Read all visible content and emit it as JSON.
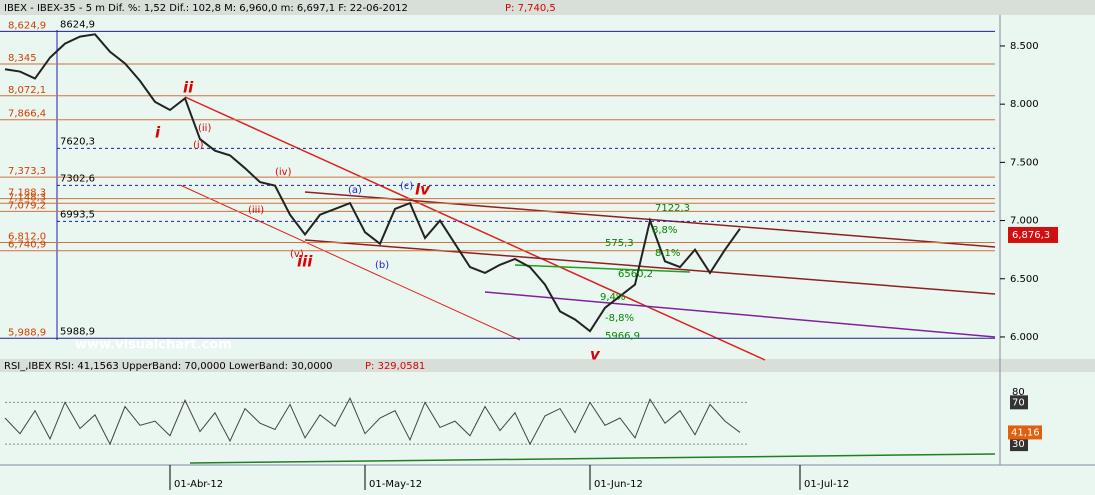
{
  "chart_data": [
    {
      "type": "line",
      "title": "IBEX - IBEX-35 - 5 m Dif. %: 1,52 Dif.: 102,8 M: 6,960,0 m: 6,697,1 F: 22-06-2012",
      "price_label": "P: 7,740,5",
      "watermark": "www.visualchart.com",
      "categories": [
        null,
        null,
        null,
        null,
        null,
        null,
        null,
        null,
        null,
        null,
        null,
        "01-Abr-12",
        null,
        null,
        null,
        null,
        null,
        null,
        null,
        null,
        null,
        null,
        null,
        null,
        "01-May-12",
        null,
        null,
        null,
        null,
        null,
        null,
        null,
        null,
        null,
        null,
        null,
        null,
        null,
        null,
        "01-Jun-12",
        null,
        null,
        null,
        null,
        null,
        null,
        null,
        null,
        null,
        null,
        null,
        null,
        null,
        "01-Jul-12",
        null,
        null,
        null,
        null,
        null,
        null,
        null,
        null,
        null,
        null,
        null,
        null,
        null
      ],
      "values": [
        8300,
        8280,
        8220,
        8400,
        8520,
        8580,
        8600,
        8450,
        8350,
        8200,
        8020,
        7950,
        8050,
        7700,
        7600,
        7560,
        7450,
        7330,
        7300,
        7050,
        6880,
        7050,
        7100,
        7150,
        6900,
        6800,
        7100,
        7150,
        6850,
        7000,
        6800,
        6600,
        6550,
        6620,
        6670,
        6600,
        6450,
        6220,
        6150,
        6050,
        6250,
        6350,
        6450,
        7000,
        6650,
        6600,
        6750,
        6550,
        6750,
        6930,
        null,
        null,
        null,
        null,
        null,
        null,
        null,
        null,
        null,
        null,
        null,
        null,
        null,
        null,
        null,
        null,
        null
      ],
      "color": "#222222",
      "ylim": [
        5845,
        8766
      ],
      "yticks": [
        {
          "value": 8500,
          "label": "8.500"
        },
        {
          "value": 8000,
          "label": "8.000"
        },
        {
          "value": 7500,
          "label": "7.500"
        },
        {
          "value": 7000,
          "label": "7.000"
        },
        {
          "value": 6500,
          "label": "6.500"
        },
        {
          "value": 6000,
          "label": "6.000"
        }
      ],
      "levels": [
        {
          "value": 8624.9,
          "label": "8,624,9"
        },
        {
          "value": 8345,
          "label": "8,345"
        },
        {
          "value": 8072.1,
          "label": "8,072,1"
        },
        {
          "value": 7866.4,
          "label": "7,866,4"
        },
        {
          "value": 7373.3,
          "label": "7,373,3"
        },
        {
          "value": 7188.3,
          "label": "7,188,3"
        },
        {
          "value": 7148.3,
          "label": "7,148,3"
        },
        {
          "value": 7079.2,
          "label": "7,079,2"
        },
        {
          "value": 6812,
          "label": "6,812,0"
        },
        {
          "value": 6740.9,
          "label": "6,740,9"
        },
        {
          "value": 5988.9,
          "label": "5,988,9"
        }
      ],
      "dashed_levels": [
        {
          "value": 7620.3,
          "label": "7620,3"
        },
        {
          "value": 7302.6,
          "label": "7302,6"
        },
        {
          "value": 6993.5,
          "label": "6993,5"
        }
      ],
      "marks": [
        {
          "value": 8624.9,
          "label": "8624,9"
        },
        {
          "value": 5988.9,
          "label": "5988,9"
        }
      ],
      "last": {
        "value": 6876.3,
        "label": "6,876,3"
      },
      "annotations": [
        "i",
        "ii",
        "(ii)",
        "(i)",
        "(iii)",
        "(iv)",
        "iii",
        "(v)",
        "(a)",
        "(b)",
        "(c)",
        "iv",
        "v",
        "7122,3",
        "575,3",
        "8,8%",
        "8,1%",
        "-8,8%",
        "5966,9",
        "9,4%",
        "6560,2"
      ]
    },
    {
      "type": "line",
      "title": "RSI_,IBEX RSI: 41,1563 UpperBand: 70,0000 LowerBand: 30,0000",
      "price_label": "P: 329,0581",
      "values": [
        55,
        40,
        62,
        35,
        70,
        45,
        58,
        30,
        66,
        48,
        52,
        38,
        72,
        42,
        60,
        33,
        64,
        50,
        44,
        68,
        36,
        58,
        47,
        74,
        40,
        55,
        62,
        34,
        70,
        46,
        52,
        38,
        66,
        43,
        60,
        30,
        57,
        64,
        41,
        70,
        48,
        55,
        36,
        73,
        50,
        62,
        39,
        68,
        52,
        41.16
      ],
      "color": "#444444",
      "ylim": [
        10,
        100
      ],
      "yticks": [
        80,
        70,
        30
      ],
      "last": {
        "value": 41.16,
        "label": "41,16"
      }
    }
  ]
}
